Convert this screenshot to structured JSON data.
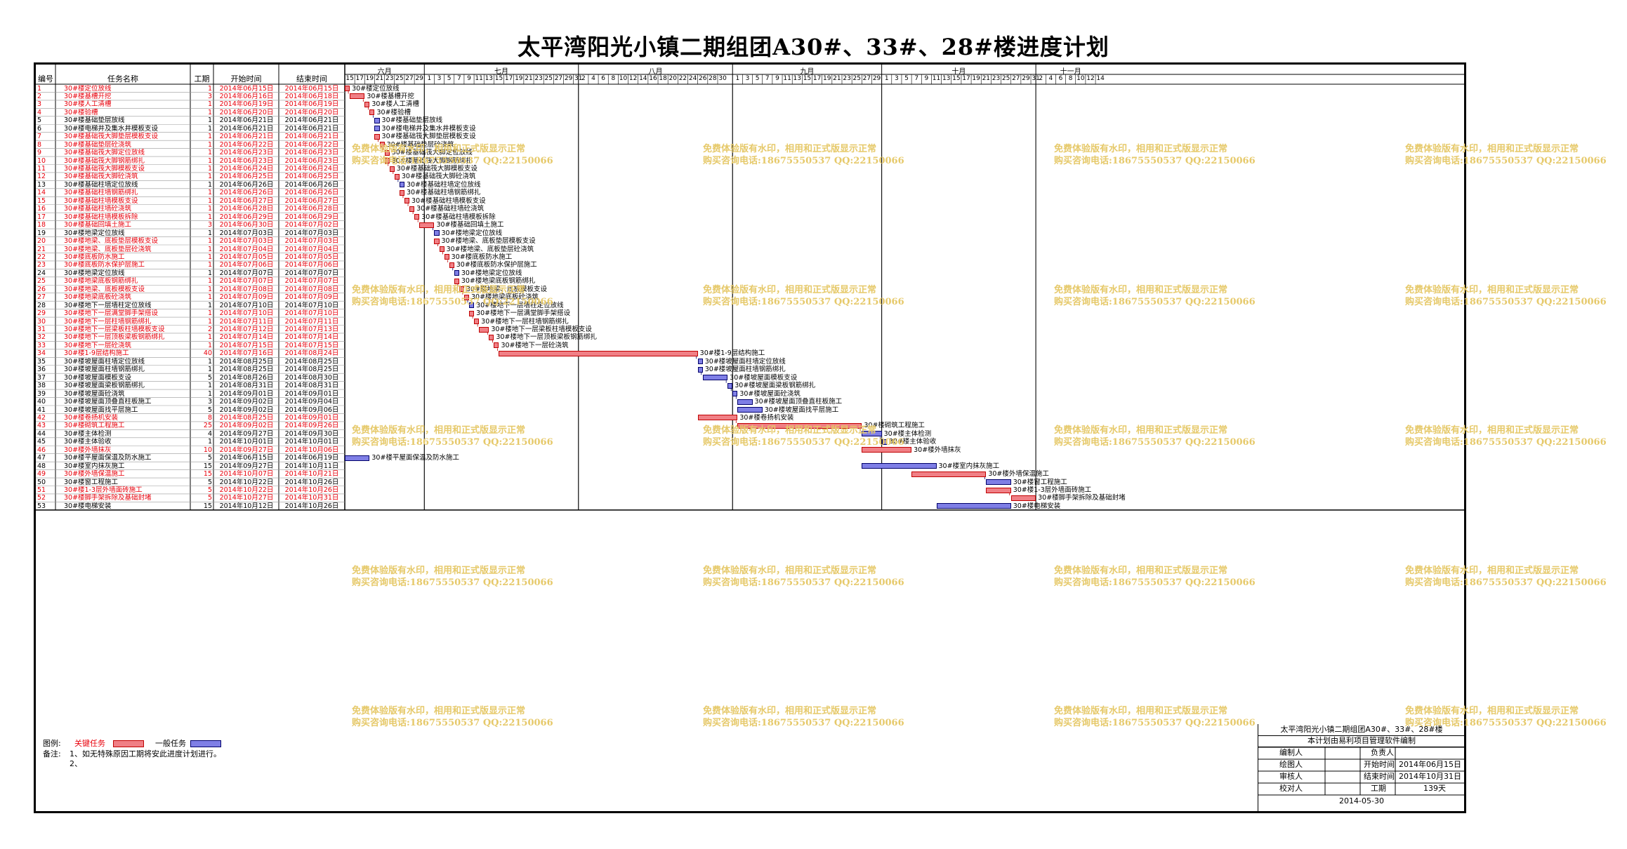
{
  "title": "太平湾阳光小镇二期组团A30#、33#、28#楼进度计划",
  "columns": {
    "id": "编号",
    "name": "任务名称",
    "duration": "工期",
    "start": "开始时间",
    "end": "结束时间"
  },
  "months": [
    "六月",
    "七月",
    "八月",
    "九月",
    "十月",
    "十一月"
  ],
  "days": {
    "jun": [
      "15",
      "17",
      "19",
      "21",
      "23",
      "25",
      "27",
      "29"
    ],
    "jul": [
      "1",
      "3",
      "5",
      "7",
      "9",
      "11",
      "13",
      "15",
      "17",
      "19",
      "21",
      "23",
      "25",
      "27",
      "29",
      "31"
    ],
    "aug": [
      "2",
      "4",
      "6",
      "8",
      "10",
      "12",
      "14",
      "16",
      "18",
      "20",
      "22",
      "24",
      "26",
      "28",
      "30"
    ],
    "sep": [
      "1",
      "3",
      "5",
      "7",
      "9",
      "11",
      "13",
      "15",
      "17",
      "19",
      "21",
      "23",
      "25",
      "27",
      "29"
    ],
    "oct": [
      "1",
      "3",
      "5",
      "7",
      "9",
      "11",
      "13",
      "15",
      "17",
      "19",
      "21",
      "23",
      "25",
      "27",
      "29",
      "31"
    ],
    "nov": [
      "2",
      "4",
      "6",
      "8",
      "10",
      "12",
      "14"
    ]
  },
  "tasks": [
    {
      "id": "1",
      "name": "30#楼定位放线",
      "dur": "1",
      "start": "2014年06月15日",
      "end": "2014年06月15日",
      "crit": true,
      "s": 0,
      "d": 1
    },
    {
      "id": "2",
      "name": "30#楼基槽开挖",
      "dur": "3",
      "start": "2014年06月16日",
      "end": "2014年06月18日",
      "crit": true,
      "s": 1,
      "d": 3
    },
    {
      "id": "3",
      "name": "30#楼人工清槽",
      "dur": "1",
      "start": "2014年06月19日",
      "end": "2014年06月19日",
      "crit": true,
      "s": 4,
      "d": 1
    },
    {
      "id": "4",
      "name": "30#楼验槽",
      "dur": "1",
      "start": "2014年06月20日",
      "end": "2014年06月20日",
      "crit": true,
      "s": 5,
      "d": 1
    },
    {
      "id": "5",
      "name": "30#楼基础垫层放线",
      "dur": "1",
      "start": "2014年06月21日",
      "end": "2014年06月21日",
      "crit": false,
      "s": 6,
      "d": 1
    },
    {
      "id": "6",
      "name": "30#楼电梯井及集水井模板支设",
      "dur": "1",
      "start": "2014年06月21日",
      "end": "2014年06月21日",
      "crit": false,
      "s": 6,
      "d": 1
    },
    {
      "id": "7",
      "name": "30#楼基础筏大脚垫层模板支设",
      "dur": "1",
      "start": "2014年06月21日",
      "end": "2014年06月21日",
      "crit": true,
      "s": 6,
      "d": 1
    },
    {
      "id": "8",
      "name": "30#楼基础垫层砼浇筑",
      "dur": "1",
      "start": "2014年06月22日",
      "end": "2014年06月22日",
      "crit": true,
      "s": 7,
      "d": 1
    },
    {
      "id": "9",
      "name": "30#楼基础筏大脚定位放线",
      "dur": "1",
      "start": "2014年06月23日",
      "end": "2014年06月23日",
      "crit": true,
      "s": 8,
      "d": 1
    },
    {
      "id": "10",
      "name": "30#楼基础筏大脚钢筋绑扎",
      "dur": "1",
      "start": "2014年06月23日",
      "end": "2014年06月23日",
      "crit": true,
      "s": 8,
      "d": 1
    },
    {
      "id": "11",
      "name": "30#楼基础筏大脚模板支设",
      "dur": "1",
      "start": "2014年06月24日",
      "end": "2014年06月24日",
      "crit": true,
      "s": 9,
      "d": 1
    },
    {
      "id": "12",
      "name": "30#楼基础筏大脚砼浇筑",
      "dur": "1",
      "start": "2014年06月25日",
      "end": "2014年06月25日",
      "crit": true,
      "s": 10,
      "d": 1
    },
    {
      "id": "13",
      "name": "30#楼基础柱墙定位放线",
      "dur": "1",
      "start": "2014年06月26日",
      "end": "2014年06月26日",
      "crit": false,
      "s": 11,
      "d": 1
    },
    {
      "id": "14",
      "name": "30#楼基础柱墙钢筋绑扎",
      "dur": "1",
      "start": "2014年06月26日",
      "end": "2014年06月26日",
      "crit": true,
      "s": 11,
      "d": 1
    },
    {
      "id": "15",
      "name": "30#楼基础柱墙模板支设",
      "dur": "1",
      "start": "2014年06月27日",
      "end": "2014年06月27日",
      "crit": true,
      "s": 12,
      "d": 1
    },
    {
      "id": "16",
      "name": "30#楼基础柱墙砼浇筑",
      "dur": "1",
      "start": "2014年06月28日",
      "end": "2014年06月28日",
      "crit": true,
      "s": 13,
      "d": 1
    },
    {
      "id": "17",
      "name": "30#楼基础柱墙模板拆除",
      "dur": "1",
      "start": "2014年06月29日",
      "end": "2014年06月29日",
      "crit": true,
      "s": 14,
      "d": 1
    },
    {
      "id": "18",
      "name": "30#楼基础回填土施工",
      "dur": "3",
      "start": "2014年06月30日",
      "end": "2014年07月02日",
      "crit": true,
      "s": 15,
      "d": 3
    },
    {
      "id": "19",
      "name": "30#楼地梁定位放线",
      "dur": "1",
      "start": "2014年07月03日",
      "end": "2014年07月03日",
      "crit": false,
      "s": 18,
      "d": 1
    },
    {
      "id": "20",
      "name": "30#楼地梁、底板垫层模板支设",
      "dur": "1",
      "start": "2014年07月03日",
      "end": "2014年07月03日",
      "crit": true,
      "s": 18,
      "d": 1
    },
    {
      "id": "21",
      "name": "30#楼地梁、底板垫层砼浇筑",
      "dur": "1",
      "start": "2014年07月04日",
      "end": "2014年07月04日",
      "crit": true,
      "s": 19,
      "d": 1
    },
    {
      "id": "22",
      "name": "30#楼底板防水施工",
      "dur": "1",
      "start": "2014年07月05日",
      "end": "2014年07月05日",
      "crit": true,
      "s": 20,
      "d": 1
    },
    {
      "id": "23",
      "name": "30#楼底板防水保护层施工",
      "dur": "1",
      "start": "2014年07月06日",
      "end": "2014年07月06日",
      "crit": true,
      "s": 21,
      "d": 1
    },
    {
      "id": "24",
      "name": "30#楼地梁定位放线",
      "dur": "1",
      "start": "2014年07月07日",
      "end": "2014年07月07日",
      "crit": false,
      "s": 22,
      "d": 1
    },
    {
      "id": "25",
      "name": "30#楼地梁底板钢筋绑扎",
      "dur": "1",
      "start": "2014年07月07日",
      "end": "2014年07月07日",
      "crit": true,
      "s": 22,
      "d": 1
    },
    {
      "id": "26",
      "name": "30#楼地梁、底板模板支设",
      "dur": "1",
      "start": "2014年07月08日",
      "end": "2014年07月08日",
      "crit": true,
      "s": 23,
      "d": 1
    },
    {
      "id": "27",
      "name": "30#楼地梁底板砼浇筑",
      "dur": "1",
      "start": "2014年07月09日",
      "end": "2014年07月09日",
      "crit": true,
      "s": 24,
      "d": 1
    },
    {
      "id": "28",
      "name": "30#楼地下一层墙柱定位放线",
      "dur": "1",
      "start": "2014年07月10日",
      "end": "2014年07月10日",
      "crit": false,
      "s": 25,
      "d": 1
    },
    {
      "id": "29",
      "name": "30#楼地下一层满堂脚手架搭设",
      "dur": "1",
      "start": "2014年07月10日",
      "end": "2014年07月10日",
      "crit": true,
      "s": 25,
      "d": 1
    },
    {
      "id": "30",
      "name": "30#楼地下一层柱墙钢筋绑扎",
      "dur": "1",
      "start": "2014年07月11日",
      "end": "2014年07月11日",
      "crit": true,
      "s": 26,
      "d": 1
    },
    {
      "id": "31",
      "name": "30#楼地下一层梁板柱墙模板支设",
      "dur": "2",
      "start": "2014年07月12日",
      "end": "2014年07月13日",
      "crit": true,
      "s": 27,
      "d": 2
    },
    {
      "id": "32",
      "name": "30#楼地下一层顶板梁板钢筋绑扎",
      "dur": "1",
      "start": "2014年07月14日",
      "end": "2014年07月14日",
      "crit": true,
      "s": 29,
      "d": 1
    },
    {
      "id": "33",
      "name": "30#楼地下一层砼浇筑",
      "dur": "1",
      "start": "2014年07月15日",
      "end": "2014年07月15日",
      "crit": true,
      "s": 30,
      "d": 1
    },
    {
      "id": "34",
      "name": "30#楼1-9层结构施工",
      "dur": "40",
      "start": "2014年07月16日",
      "end": "2014年08月24日",
      "crit": true,
      "s": 31,
      "d": 40
    },
    {
      "id": "35",
      "name": "30#楼坡屋面柱墙定位放线",
      "dur": "1",
      "start": "2014年08月25日",
      "end": "2014年08月25日",
      "crit": false,
      "s": 71,
      "d": 1
    },
    {
      "id": "36",
      "name": "30#楼坡屋面柱墙钢筋绑扎",
      "dur": "1",
      "start": "2014年08月25日",
      "end": "2014年08月25日",
      "crit": false,
      "s": 71,
      "d": 1
    },
    {
      "id": "37",
      "name": "30#楼坡屋面模板支设",
      "dur": "5",
      "start": "2014年08月26日",
      "end": "2014年08月30日",
      "crit": false,
      "s": 72,
      "d": 5
    },
    {
      "id": "38",
      "name": "30#楼坡屋面梁板钢筋绑扎",
      "dur": "1",
      "start": "2014年08月31日",
      "end": "2014年08月31日",
      "crit": false,
      "s": 77,
      "d": 1
    },
    {
      "id": "39",
      "name": "30#楼坡屋面砼浇筑",
      "dur": "1",
      "start": "2014年09月01日",
      "end": "2014年09月01日",
      "crit": false,
      "s": 78,
      "d": 1
    },
    {
      "id": "40",
      "name": "30#楼坡屋面顶叠直柱板施工",
      "dur": "3",
      "start": "2014年09月02日",
      "end": "2014年09月04日",
      "crit": false,
      "s": 79,
      "d": 3
    },
    {
      "id": "41",
      "name": "30#楼坡屋面找平层施工",
      "dur": "5",
      "start": "2014年09月02日",
      "end": "2014年09月06日",
      "crit": false,
      "s": 79,
      "d": 5
    },
    {
      "id": "42",
      "name": "30#楼卷扬机安装",
      "dur": "8",
      "start": "2014年08月25日",
      "end": "2014年09月01日",
      "crit": true,
      "s": 71,
      "d": 8
    },
    {
      "id": "43",
      "name": "30#楼砌筑工程施工",
      "dur": "25",
      "start": "2014年09月02日",
      "end": "2014年09月26日",
      "crit": true,
      "s": 79,
      "d": 25
    },
    {
      "id": "44",
      "name": "30#楼主体检测",
      "dur": "4",
      "start": "2014年09月27日",
      "end": "2014年09月30日",
      "crit": false,
      "s": 104,
      "d": 4
    },
    {
      "id": "45",
      "name": "30#楼主体验收",
      "dur": "1",
      "start": "2014年10月01日",
      "end": "2014年10月01日",
      "crit": false,
      "s": 108,
      "d": 1
    },
    {
      "id": "46",
      "name": "30#楼外墙抹灰",
      "dur": "10",
      "start": "2014年09月27日",
      "end": "2014年10月06日",
      "crit": true,
      "s": 104,
      "d": 10
    },
    {
      "id": "47",
      "name": "30#楼平屋面保温及防水施工",
      "dur": "5",
      "start": "2014年06月15日",
      "end": "2014年06月19日",
      "crit": false,
      "s": 0,
      "d": 5
    },
    {
      "id": "48",
      "name": "30#楼室内抹灰施工",
      "dur": "15",
      "start": "2014年09月27日",
      "end": "2014年10月11日",
      "crit": false,
      "s": 104,
      "d": 15
    },
    {
      "id": "49",
      "name": "30#楼外墙保温施工",
      "dur": "15",
      "start": "2014年10月07日",
      "end": "2014年10月21日",
      "crit": true,
      "s": 114,
      "d": 15
    },
    {
      "id": "50",
      "name": "30#楼窗工程施工",
      "dur": "5",
      "start": "2014年10月22日",
      "end": "2014年10月26日",
      "crit": false,
      "s": 129,
      "d": 5
    },
    {
      "id": "51",
      "name": "30#楼1-3层外墙面砖施工",
      "dur": "5",
      "start": "2014年10月22日",
      "end": "2014年10月26日",
      "crit": true,
      "s": 129,
      "d": 5
    },
    {
      "id": "52",
      "name": "30#楼脚手架拆除及基础封堵",
      "dur": "5",
      "start": "2014年10月27日",
      "end": "2014年10月31日",
      "crit": true,
      "s": 134,
      "d": 5
    },
    {
      "id": "53",
      "name": "30#楼电梯安装",
      "dur": "15",
      "start": "2014年10月12日",
      "end": "2014年10月26日",
      "crit": false,
      "s": 119,
      "d": 15
    }
  ],
  "watermark": {
    "line1": "免费体验版有水印，相用和正式版显示正常",
    "line2": "购买咨询电话:18675550537 QQ:22150066"
  },
  "legend": {
    "label": "图例:",
    "critical": "关键任务",
    "normal": "一般任务",
    "notes_label": "备注:",
    "note1": "1、如无特殊原因工期将安此进度计划进行。",
    "note2": "2、"
  },
  "info": {
    "project": "太平湾阳光小镇二期组团A30#、33#、28#楼",
    "software": "本计划由易利项目管理软件编制",
    "editor_label": "编制人",
    "lead_label": "负责人",
    "drawer_label": "绘图人",
    "start_label": "开始时间",
    "start_value": "2014年06月15日",
    "reviewer_label": "审核人",
    "end_label": "结束时间",
    "end_value": "2014年10月31日",
    "checker_label": "校对人",
    "duration_label": "工期",
    "duration_value": "139天",
    "date": "2014-05-30"
  },
  "colors": {
    "critical_fill": "#f07f85",
    "normal_fill": "#7f7fe6",
    "critical_text": "#e8000b",
    "watermark": "#e6c96a"
  }
}
